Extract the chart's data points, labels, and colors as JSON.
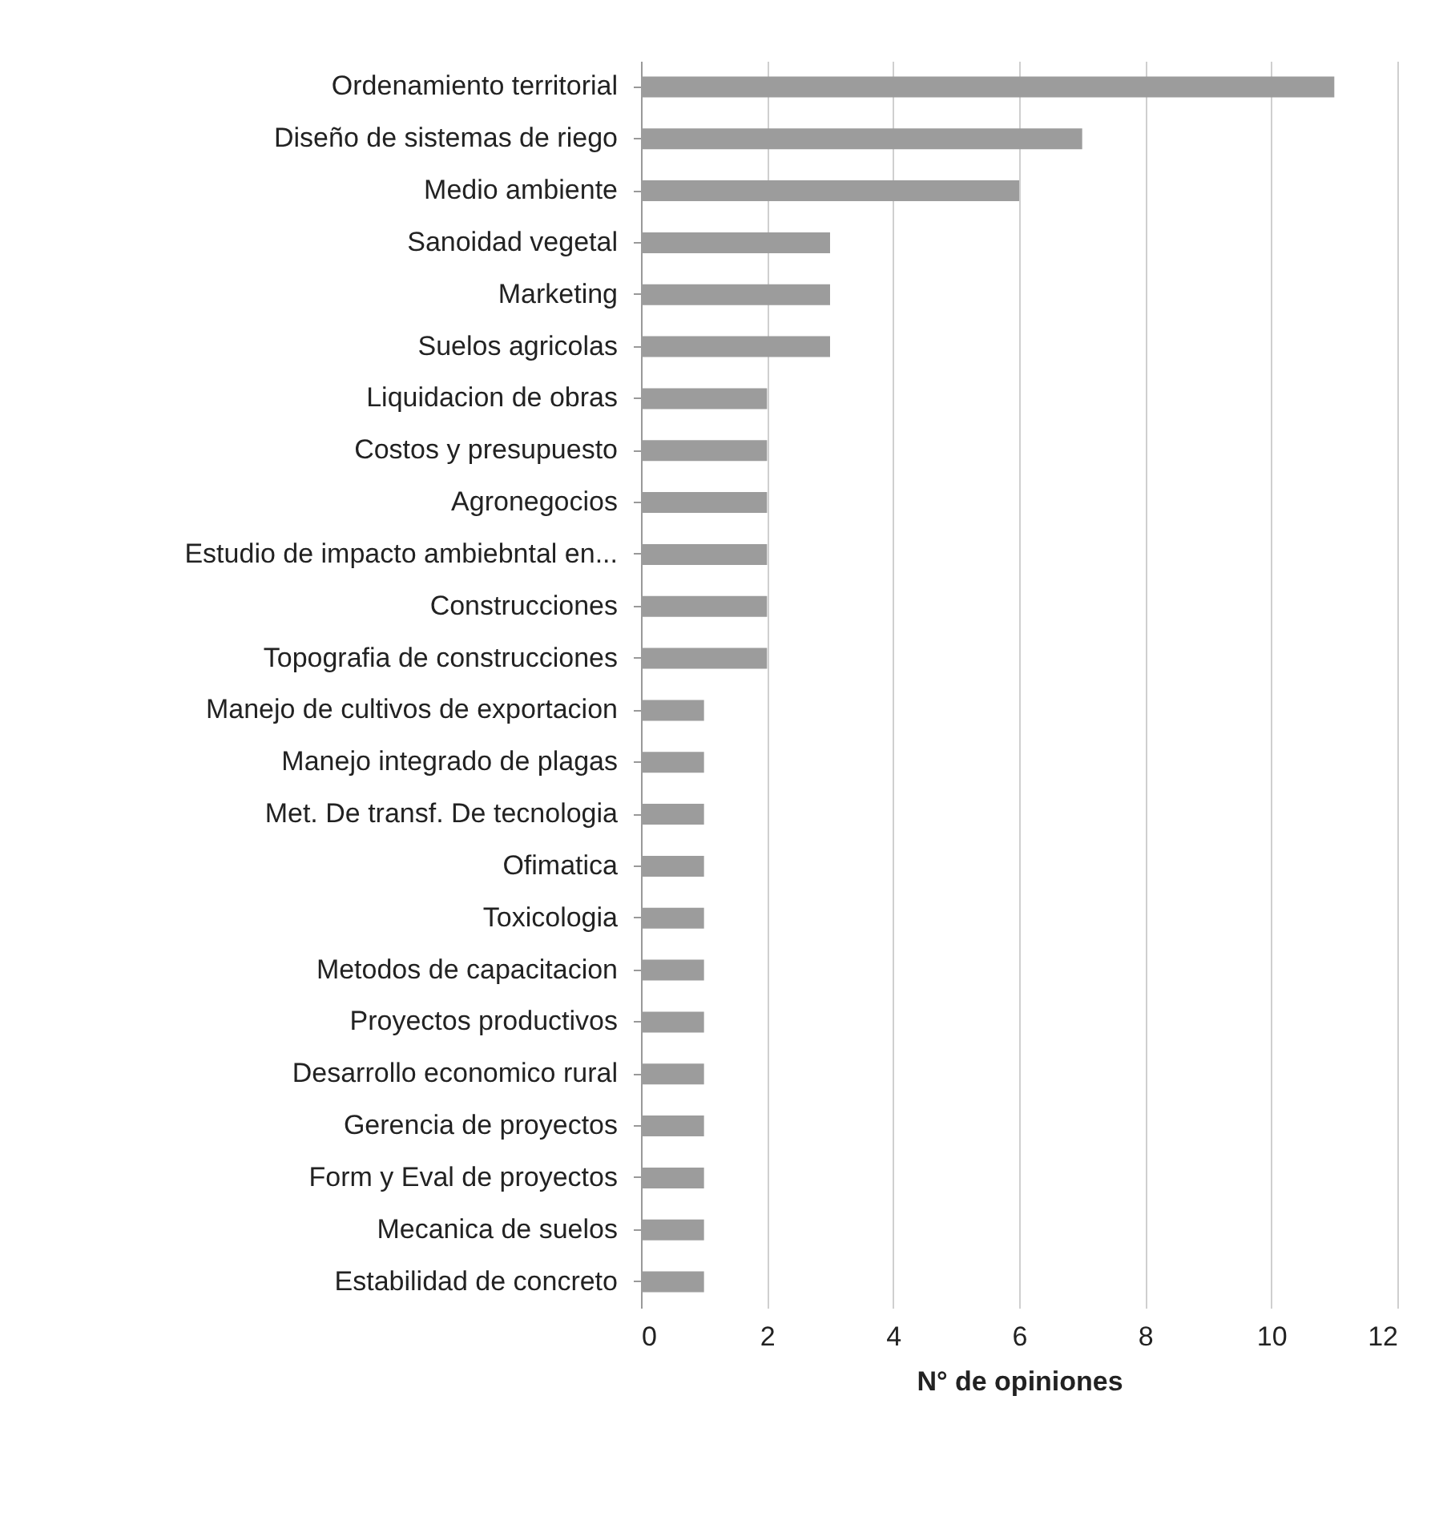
{
  "chart_data": {
    "type": "bar",
    "orientation": "horizontal",
    "xlabel": "N° de opiniones",
    "categories": [
      "Ordenamiento territorial",
      "Diseño de sistemas de riego",
      "Medio ambiente",
      "Sanoidad vegetal",
      "Marketing",
      "Suelos agricolas",
      "Liquidacion de obras",
      "Costos y presupuesto",
      "Agronegocios",
      "Estudio de impacto ambiebntal en...",
      "Construcciones",
      "Topografia de construcciones",
      "Manejo de cultivos de exportacion",
      "Manejo integrado de plagas",
      "Met. De transf. De tecnologia",
      "Ofimatica",
      "Toxicologia",
      "Metodos de capacitacion",
      "Proyectos productivos",
      "Desarrollo economico rural",
      "Gerencia de proyectos",
      "Form y Eval de proyectos",
      "Mecanica de suelos",
      "Estabilidad de concreto"
    ],
    "values": [
      11,
      7,
      6,
      3,
      3,
      3,
      2,
      2,
      2,
      2,
      2,
      2,
      1,
      1,
      1,
      1,
      1,
      1,
      1,
      1,
      1,
      1,
      1,
      1
    ],
    "color": "#9c9c9c",
    "xlim": [
      0,
      12
    ],
    "xticks": [
      0,
      2,
      4,
      6,
      8,
      10,
      12
    ],
    "grid": "x"
  }
}
